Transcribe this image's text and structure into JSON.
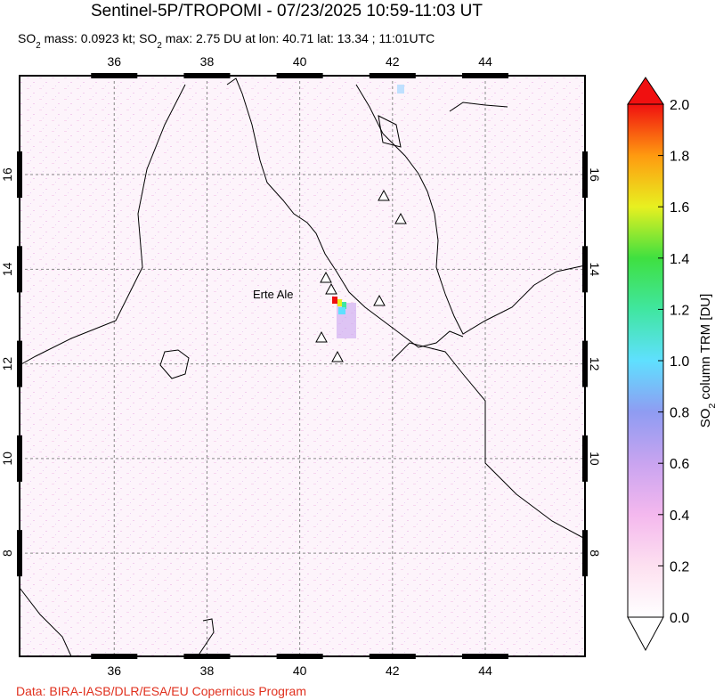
{
  "title": "Sentinel-5P/TROPOMI - 07/23/2025 10:59-11:03 UT",
  "subtitle_parts": [
    "SO",
    "2",
    " mass: 0.0923 kt; SO",
    "2",
    " max: 2.75 DU at lon: 40.71 lat: 13.34 ; 11:01UTC"
  ],
  "map": {
    "xlim": [
      33.96,
      46.15
    ],
    "ylim": [
      5.82,
      18.09
    ],
    "xticks": [
      36,
      38,
      40,
      42,
      44
    ],
    "yticks": [
      8,
      10,
      12,
      14,
      16
    ],
    "volcano_label": "Erte Ale"
  },
  "colorbar": {
    "lim": [
      0,
      2
    ],
    "ticks": [
      {
        "value": 0,
        "label": "0.0"
      },
      {
        "value": 0.2,
        "label": "0.2"
      },
      {
        "value": 0.4,
        "label": "0.4"
      },
      {
        "value": 0.6,
        "label": "0.6"
      },
      {
        "value": 0.8,
        "label": "0.8"
      },
      {
        "value": 1,
        "label": "1.0"
      },
      {
        "value": 1.2,
        "label": "1.2"
      },
      {
        "value": 1.4,
        "label": "1.4"
      },
      {
        "value": 1.6,
        "label": "1.6"
      },
      {
        "value": 1.8,
        "label": "1.8"
      },
      {
        "value": 2,
        "label": "2.0"
      }
    ],
    "label_parts": [
      "SO",
      "2",
      " column TRM [DU]"
    ]
  },
  "credit": "Data: BIRA-IASB/DLR/ESA/EU Copernicus Program"
}
